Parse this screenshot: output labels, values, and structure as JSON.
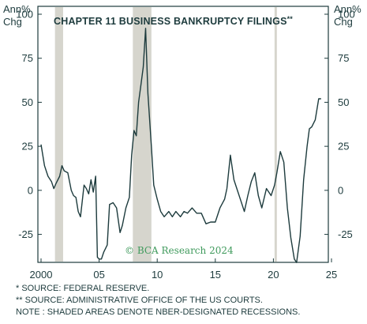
{
  "chart_data": {
    "type": "line",
    "title": "CHAPTER 11 BUSINESS BANKRUPTCY FILINGS",
    "title_mark": "**",
    "ylabel_left": [
      "Ann%",
      "Chg"
    ],
    "ylabel_right": [
      "Ann%",
      "Chg"
    ],
    "xlim": [
      2000,
      2025
    ],
    "ylim": [
      -40,
      100
    ],
    "x_ticks": [
      2000,
      2005,
      2010,
      2015,
      2020,
      2025
    ],
    "x_tick_labels": [
      "2000",
      "05",
      "10",
      "15",
      "20",
      "25"
    ],
    "y_ticks": [
      100,
      75,
      50,
      25,
      0,
      -25
    ],
    "y_tick_labels": [
      "100",
      "75",
      "50",
      "25",
      "0",
      "-25"
    ],
    "recessions": [
      [
        2001.2,
        2001.9
      ],
      [
        2007.9,
        2009.5
      ],
      [
        2020.1,
        2020.3
      ]
    ],
    "credit": "© BCA Research 2024",
    "series": [
      {
        "line_color": "#1d3b3d",
        "x": [
          2000.0,
          2000.3,
          2000.6,
          2000.9,
          2001.1,
          2001.3,
          2001.6,
          2001.8,
          2002.0,
          2002.3,
          2002.6,
          2002.8,
          2003.0,
          2003.2,
          2003.4,
          2003.7,
          2003.9,
          2004.1,
          2004.3,
          2004.5,
          2004.7,
          2004.85,
          2005.0,
          2005.2,
          2005.4,
          2005.7,
          2005.9,
          2006.2,
          2006.5,
          2006.8,
          2007.0,
          2007.3,
          2007.6,
          2007.8,
          2008.0,
          2008.2,
          2008.4,
          2008.6,
          2008.8,
          2009.0,
          2009.2,
          2009.5,
          2009.7,
          2010.0,
          2010.3,
          2010.6,
          2011.0,
          2011.3,
          2011.6,
          2012.0,
          2012.3,
          2012.6,
          2013.0,
          2013.4,
          2013.8,
          2014.2,
          2014.6,
          2015.0,
          2015.4,
          2015.8,
          2016.0,
          2016.3,
          2016.6,
          2016.9,
          2017.2,
          2017.5,
          2017.8,
          2018.1,
          2018.4,
          2018.7,
          2019.0,
          2019.4,
          2019.8,
          2020.1,
          2020.3,
          2020.6,
          2020.9,
          2021.2,
          2021.5,
          2021.8,
          2022.0,
          2022.3,
          2022.6,
          2022.9,
          2023.1,
          2023.3,
          2023.6,
          2023.9,
          2024.1
        ],
        "y": [
          26,
          14,
          8,
          5,
          1,
          4,
          8,
          14,
          11,
          10,
          0,
          -3,
          -4,
          -12,
          -15,
          3,
          1,
          -2,
          6,
          -1,
          8,
          -38,
          -39,
          -39,
          -35,
          -31,
          -8,
          -7,
          -10,
          -24,
          -20,
          -10,
          -4,
          20,
          34,
          31,
          50,
          60,
          70,
          92,
          55,
          25,
          3,
          -5,
          -12,
          -15,
          -12,
          -15,
          -12,
          -15,
          -12,
          -13,
          -10,
          -13,
          -13,
          -19,
          -18,
          -18,
          -10,
          -5,
          1,
          20,
          6,
          0,
          -6,
          -12,
          -3,
          5,
          10,
          -3,
          -10,
          1,
          -3,
          3,
          10,
          22,
          16,
          -10,
          -27,
          -39,
          -41,
          -26,
          6,
          25,
          35,
          36,
          40,
          52,
          52
        ]
      }
    ]
  },
  "notes": [
    "*  SOURCE: FEDERAL RESERVE.",
    "** SOURCE: ADMINISTRATIVE OFFICE OF THE US COURTS.",
    "NOTE : SHADED AREAS DENOTE NBER-DESIGNATED RECESSIONS."
  ]
}
